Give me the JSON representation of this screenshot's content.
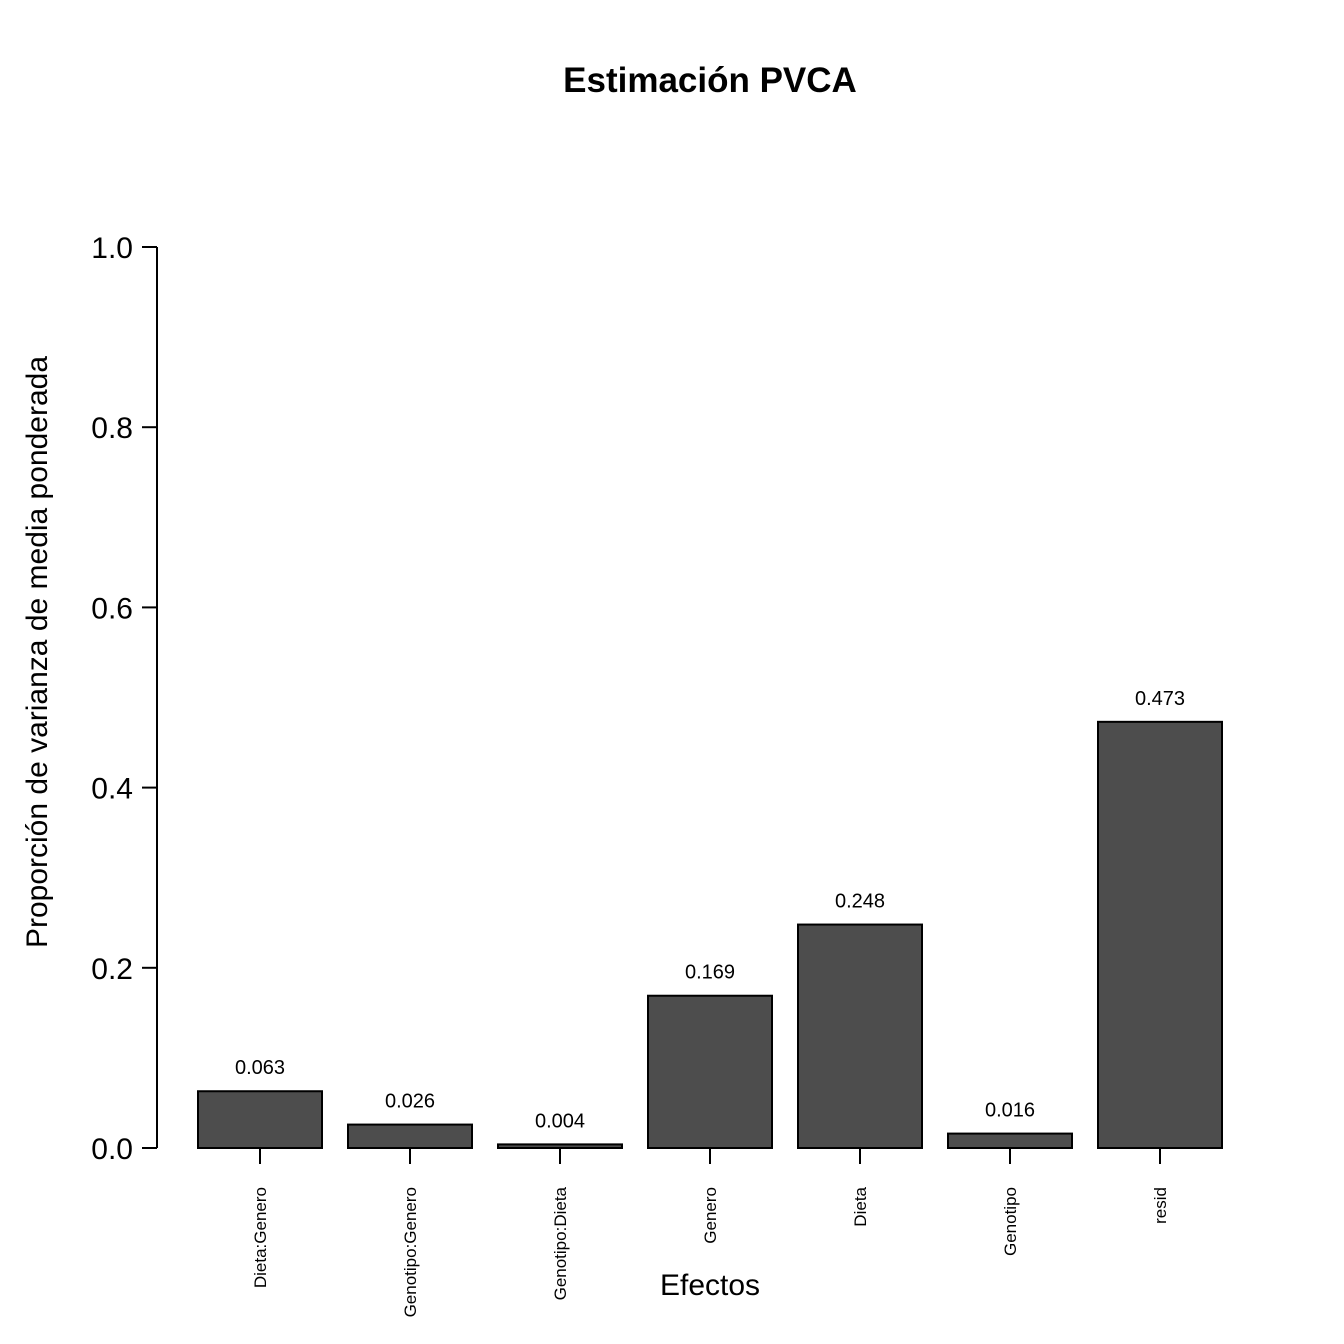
{
  "chart_data": {
    "type": "bar",
    "title": "Estimación PVCA",
    "xlabel": "Efectos",
    "ylabel": "Proporción de varianza de media ponderada",
    "categories": [
      "Dieta:Genero",
      "Genotipo:Genero",
      "Genotipo:Dieta",
      "Genero",
      "Dieta",
      "Genotipo",
      "resid"
    ],
    "values": [
      0.063,
      0.026,
      0.004,
      0.169,
      0.248,
      0.016,
      0.473
    ],
    "value_labels": [
      "0.063",
      "0.026",
      "0.004",
      "0.169",
      "0.248",
      "0.016",
      "0.473"
    ],
    "yticks": [
      0.0,
      0.2,
      0.4,
      0.6,
      0.8,
      1.0
    ],
    "ytick_labels": [
      "0.0",
      "0.2",
      "0.4",
      "0.6",
      "0.8",
      "1.0"
    ],
    "ylim": [
      0,
      1
    ],
    "grid": false,
    "bar_color": "#4d4d4d",
    "xtick_rotation": "vertical"
  }
}
